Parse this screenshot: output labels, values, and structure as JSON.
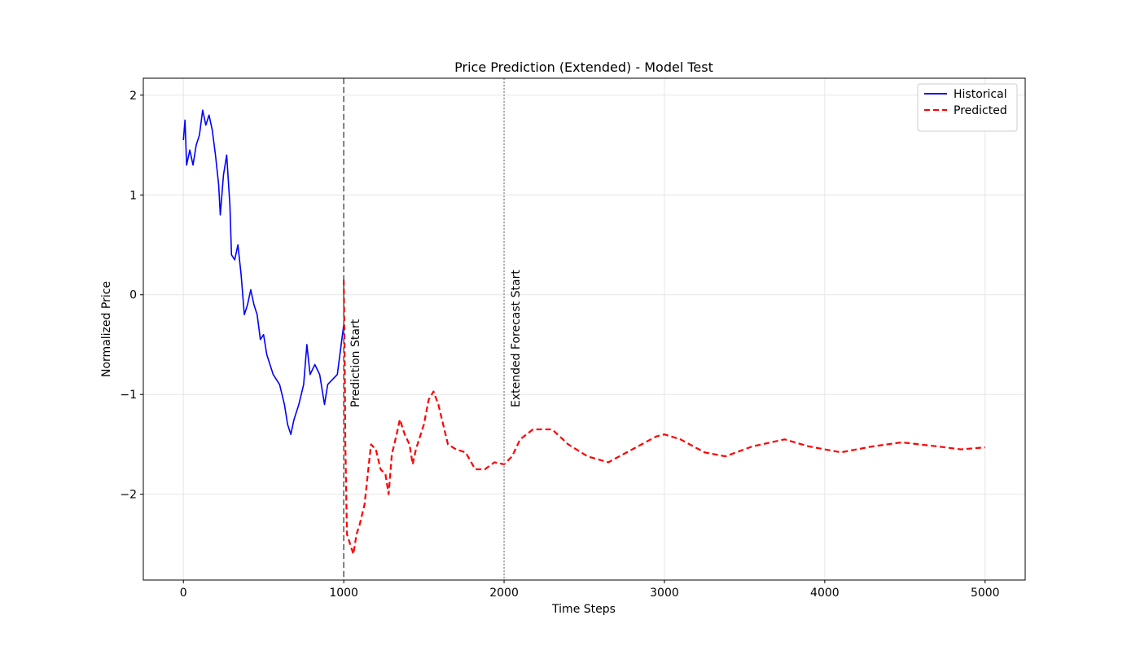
{
  "chart_data": {
    "type": "line",
    "title": "Price Prediction (Extended) - Model Test",
    "xlabel": "Time Steps",
    "ylabel": "Normalized Price",
    "xlim": [
      -250,
      5250
    ],
    "ylim": [
      -2.86,
      2.17
    ],
    "xticks": [
      0,
      1000,
      2000,
      3000,
      4000,
      5000
    ],
    "yticks": [
      {
        "value": -2,
        "label": "−2"
      },
      {
        "value": -1,
        "label": "−1"
      },
      0,
      1,
      2
    ],
    "grid": true,
    "legend": "upper right",
    "series": [
      {
        "name": "Historical",
        "color": "#0000ff",
        "linestyle": "solid",
        "x": [
          0,
          10,
          20,
          40,
          60,
          80,
          100,
          120,
          140,
          160,
          180,
          200,
          220,
          230,
          250,
          270,
          290,
          300,
          320,
          340,
          360,
          380,
          400,
          420,
          440,
          460,
          480,
          500,
          520,
          540,
          560,
          600,
          630,
          650,
          670,
          690,
          720,
          750,
          770,
          790,
          820,
          850,
          880,
          900,
          930,
          960,
          1000
        ],
        "values": [
          1.55,
          1.75,
          1.3,
          1.45,
          1.3,
          1.5,
          1.6,
          1.85,
          1.7,
          1.8,
          1.65,
          1.4,
          1.1,
          0.8,
          1.2,
          1.4,
          0.9,
          0.4,
          0.35,
          0.5,
          0.2,
          -0.2,
          -0.1,
          0.05,
          -0.1,
          -0.2,
          -0.45,
          -0.4,
          -0.6,
          -0.7,
          -0.8,
          -0.9,
          -1.1,
          -1.3,
          -1.4,
          -1.25,
          -1.1,
          -0.9,
          -0.5,
          -0.8,
          -0.7,
          -0.8,
          -1.1,
          -0.9,
          -0.85,
          -0.8,
          -0.3
        ]
      },
      {
        "name": "Predicted",
        "color": "#ff0000",
        "linestyle": "dashed",
        "x": [
          1000,
          1005,
          1010,
          1020,
          1040,
          1060,
          1080,
          1100,
          1130,
          1150,
          1170,
          1200,
          1230,
          1260,
          1280,
          1300,
          1330,
          1350,
          1380,
          1410,
          1430,
          1450,
          1480,
          1500,
          1530,
          1560,
          1590,
          1620,
          1650,
          1700,
          1760,
          1820,
          1880,
          1940,
          2000,
          2050,
          2100,
          2180,
          2300,
          2400,
          2520,
          2650,
          2800,
          2950,
          3000,
          3100,
          3250,
          3380,
          3550,
          3750,
          3900,
          4100,
          4300,
          4480,
          4700,
          4850,
          5000
        ],
        "values": [
          0.15,
          -0.5,
          -1.5,
          -2.4,
          -2.5,
          -2.6,
          -2.4,
          -2.3,
          -2.1,
          -1.8,
          -1.5,
          -1.55,
          -1.75,
          -1.8,
          -2.0,
          -1.6,
          -1.4,
          -1.25,
          -1.4,
          -1.5,
          -1.7,
          -1.55,
          -1.4,
          -1.3,
          -1.05,
          -0.97,
          -1.1,
          -1.3,
          -1.5,
          -1.55,
          -1.58,
          -1.75,
          -1.75,
          -1.68,
          -1.7,
          -1.62,
          -1.45,
          -1.35,
          -1.35,
          -1.5,
          -1.62,
          -1.68,
          -1.55,
          -1.42,
          -1.4,
          -1.45,
          -1.58,
          -1.62,
          -1.52,
          -1.45,
          -1.52,
          -1.58,
          -1.52,
          -1.48,
          -1.52,
          -1.55,
          -1.53
        ]
      }
    ],
    "vlines": [
      {
        "x": 1000,
        "label": "Prediction Start",
        "color": "#555555",
        "linestyle": "dashed"
      },
      {
        "x": 2000,
        "label": "Extended Forecast Start",
        "color": "#999999",
        "linestyle": "dotted"
      }
    ]
  }
}
